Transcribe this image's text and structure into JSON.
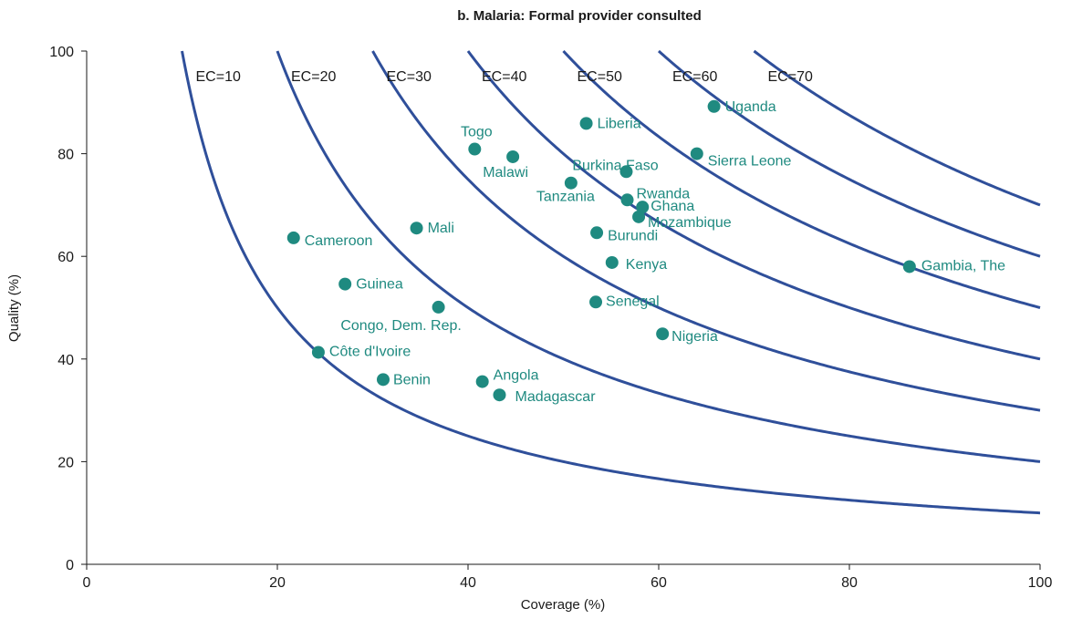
{
  "chart_data": {
    "type": "scatter",
    "title": "b. Malaria: Formal provider consulted",
    "xlabel": "Coverage (%)",
    "ylabel": "Quality (%)",
    "xlim": [
      0,
      100
    ],
    "ylim": [
      0,
      100
    ],
    "xticks": [
      0,
      20,
      40,
      60,
      80,
      100
    ],
    "yticks": [
      0,
      20,
      40,
      60,
      80,
      100
    ],
    "grid": false,
    "colors": {
      "curve": "#2f4f9a",
      "point": "#1f8a80",
      "label": "#1f8a80",
      "axis": "#1a1a1a"
    },
    "curves": [
      {
        "label": "EC=10",
        "ec": 10
      },
      {
        "label": "EC=20",
        "ec": 20
      },
      {
        "label": "EC=30",
        "ec": 30
      },
      {
        "label": "EC=40",
        "ec": 40
      },
      {
        "label": "EC=50",
        "ec": 50
      },
      {
        "label": "EC=60",
        "ec": 60
      },
      {
        "label": "EC=70",
        "ec": 70
      }
    ],
    "points": [
      {
        "label": "Uganda",
        "x": 65.8,
        "y": 89.2
      },
      {
        "label": "Liberia",
        "x": 52.4,
        "y": 85.9
      },
      {
        "label": "Togo",
        "x": 40.7,
        "y": 80.9
      },
      {
        "label": "Malawi",
        "x": 44.7,
        "y": 79.4
      },
      {
        "label": "Sierra Leone",
        "x": 64.0,
        "y": 80.0
      },
      {
        "label": "Burkina Faso",
        "x": 56.6,
        "y": 76.5
      },
      {
        "label": "Tanzania",
        "x": 50.8,
        "y": 74.3
      },
      {
        "label": "Rwanda",
        "x": 56.7,
        "y": 71.0
      },
      {
        "label": "Ghana",
        "x": 58.3,
        "y": 69.6
      },
      {
        "label": "Mozambique",
        "x": 57.9,
        "y": 67.7
      },
      {
        "label": "Mali",
        "x": 34.6,
        "y": 65.5
      },
      {
        "label": "Burundi",
        "x": 53.5,
        "y": 64.6
      },
      {
        "label": "Cameroon",
        "x": 21.7,
        "y": 63.6
      },
      {
        "label": "Kenya",
        "x": 55.1,
        "y": 58.8
      },
      {
        "label": "Gambia, The",
        "x": 86.3,
        "y": 58.0
      },
      {
        "label": "Guinea",
        "x": 27.1,
        "y": 54.6
      },
      {
        "label": "Senegal",
        "x": 53.4,
        "y": 51.1
      },
      {
        "label": "Congo, Dem. Rep.",
        "x": 36.9,
        "y": 50.1
      },
      {
        "label": "Nigeria",
        "x": 60.4,
        "y": 44.9
      },
      {
        "label": "Côte d'Ivoire",
        "x": 24.3,
        "y": 41.3
      },
      {
        "label": "Benin",
        "x": 31.1,
        "y": 36.0
      },
      {
        "label": "Angola",
        "x": 41.5,
        "y": 35.6
      },
      {
        "label": "Madagascar",
        "x": 43.3,
        "y": 33.0
      }
    ]
  }
}
